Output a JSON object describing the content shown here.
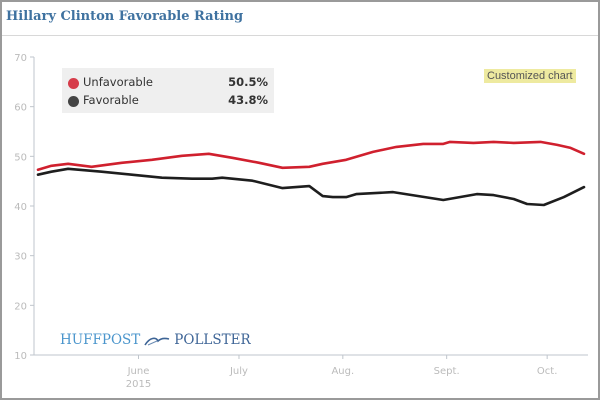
{
  "header": {
    "title": "Hillary Clinton Favorable Rating"
  },
  "badge": {
    "label": "Customized chart"
  },
  "legend": [
    {
      "label": "Unfavorable",
      "value": "50.5%",
      "color": "#d63c4a"
    },
    {
      "label": "Favorable",
      "value": "43.8%",
      "color": "#444444"
    }
  ],
  "logo": {
    "left": "HUFFPOST",
    "right": "POLLSTER"
  },
  "colors": {
    "title": "#3f72a0",
    "unfavorable": "#d0202e",
    "favorable": "#1e1e1e",
    "axis": "#bfc5cc",
    "badge": "#eeeaa0"
  },
  "chart_data": {
    "type": "line",
    "title": "Hillary Clinton Favorable Rating",
    "xlabel": "",
    "ylabel": "",
    "ylim": [
      10,
      70
    ],
    "yticks": [
      10,
      20,
      30,
      40,
      50,
      60,
      70
    ],
    "xlim_days": [
      -30,
      42
    ],
    "x_unit": "days since 2015-06-01",
    "xticks": [
      {
        "day": 0,
        "label": "June",
        "sublabel": "2015"
      },
      {
        "day": 30,
        "label": "July",
        "sublabel": ""
      },
      {
        "day": 61,
        "label": "Aug.",
        "sublabel": ""
      },
      {
        "day": 92,
        "label": "Sept.",
        "sublabel": ""
      },
      {
        "day": 122,
        "label": "Oct.",
        "sublabel": ""
      }
    ],
    "grid": false,
    "legend_position": "top-left",
    "series": [
      {
        "name": "Unfavorable",
        "latest": 50.5,
        "points": [
          [
            -30,
            47.3
          ],
          [
            -26,
            48.1
          ],
          [
            -21,
            48.5
          ],
          [
            -14,
            47.9
          ],
          [
            -5,
            48.7
          ],
          [
            4,
            49.3
          ],
          [
            13,
            50.1
          ],
          [
            21,
            50.5
          ],
          [
            28,
            49.7
          ],
          [
            36,
            48.7
          ],
          [
            43,
            47.7
          ],
          [
            51,
            47.9
          ],
          [
            55,
            48.5
          ],
          [
            62,
            49.3
          ],
          [
            70,
            50.9
          ],
          [
            77,
            51.9
          ],
          [
            85,
            52.5
          ],
          [
            91,
            52.5
          ],
          [
            93,
            52.9
          ],
          [
            100,
            52.7
          ],
          [
            106,
            52.9
          ],
          [
            112,
            52.7
          ],
          [
            120,
            52.9
          ],
          [
            125,
            52.3
          ],
          [
            129,
            51.7
          ],
          [
            133,
            50.5
          ]
        ]
      },
      {
        "name": "Favorable",
        "latest": 43.8,
        "points": [
          [
            -30,
            46.3
          ],
          [
            -26,
            46.9
          ],
          [
            -21,
            47.5
          ],
          [
            -11,
            46.9
          ],
          [
            -2,
            46.3
          ],
          [
            7,
            45.7
          ],
          [
            16,
            45.5
          ],
          [
            22,
            45.5
          ],
          [
            25,
            45.7
          ],
          [
            34,
            45.1
          ],
          [
            43,
            43.6
          ],
          [
            51,
            44.0
          ],
          [
            55,
            42.0
          ],
          [
            58,
            41.8
          ],
          [
            62,
            41.8
          ],
          [
            65,
            42.4
          ],
          [
            76,
            42.8
          ],
          [
            91,
            41.2
          ],
          [
            101,
            42.4
          ],
          [
            106,
            42.2
          ],
          [
            112,
            41.4
          ],
          [
            116,
            40.4
          ],
          [
            121,
            40.2
          ],
          [
            127,
            41.8
          ],
          [
            133,
            43.8
          ]
        ]
      }
    ]
  }
}
